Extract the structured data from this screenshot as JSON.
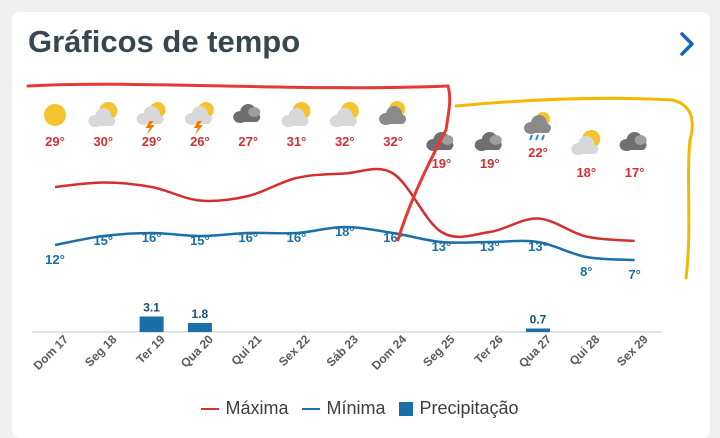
{
  "header": {
    "title": "Gráficos de tempo",
    "chevron_icon": "chevron-right-icon"
  },
  "colors": {
    "max": "#d32f2f",
    "min": "#1a6fa8",
    "precip": "#1a6fa8",
    "annotation_red": "#e53935",
    "annotation_yellow": "#f5b800"
  },
  "legend": {
    "max_label": "Máxima",
    "min_label": "Mínima",
    "precip_label": "Precipitação"
  },
  "days": [
    {
      "label": "Dom 17",
      "icon": "sun-icon",
      "max": "29°",
      "min": "12°"
    },
    {
      "label": "Seg 18",
      "icon": "partly-cloudy-icon",
      "max": "30°",
      "min": "15°"
    },
    {
      "label": "Ter 19",
      "icon": "thunderstorm-icon",
      "max": "29°",
      "min": "16°",
      "precip": "3.1"
    },
    {
      "label": "Qua 20",
      "icon": "thunderstorm-icon",
      "max": "26°",
      "min": "15°",
      "precip": "1.8"
    },
    {
      "label": "Qui 21",
      "icon": "cloudy-icon",
      "max": "27°",
      "min": "16°"
    },
    {
      "label": "Sex 22",
      "icon": "partly-cloudy-icon",
      "max": "31°",
      "min": "16°"
    },
    {
      "label": "Sáb 23",
      "icon": "partly-cloudy-icon",
      "max": "32°",
      "min": "18°"
    },
    {
      "label": "Dom 24",
      "icon": "cloudy-sun-icon",
      "max": "32°",
      "min": "16°"
    },
    {
      "label": "Seg 25",
      "icon": "cloudy-icon",
      "max": "19°",
      "min": "13°"
    },
    {
      "label": "Ter 26",
      "icon": "cloudy-icon",
      "max": "19°",
      "min": "13°"
    },
    {
      "label": "Qua 27",
      "icon": "rain-icon",
      "max": "22°",
      "min": "13°",
      "precip": "0.7"
    },
    {
      "label": "Qui 28",
      "icon": "partly-cloudy-icon",
      "max": "18°",
      "min": "8°"
    },
    {
      "label": "Sex 29",
      "icon": "cloudy-icon",
      "max": "17°",
      "min": "7°"
    }
  ],
  "chart_data": {
    "type": "line",
    "categories": [
      "Dom 17",
      "Seg 18",
      "Ter 19",
      "Qua 20",
      "Qui 21",
      "Sex 22",
      "Sáb 23",
      "Dom 24",
      "Seg 25",
      "Ter 26",
      "Qua 27",
      "Qui 28",
      "Sex 29"
    ],
    "series": [
      {
        "name": "Máxima",
        "values": [
          29,
          30,
          29,
          26,
          27,
          31,
          32,
          32,
          19,
          19,
          22,
          18,
          17
        ]
      },
      {
        "name": "Mínima",
        "values": [
          12,
          15,
          16,
          15,
          16,
          16,
          18,
          16,
          13,
          13,
          13,
          8,
          7
        ]
      },
      {
        "name": "Precipitação",
        "type": "bar",
        "values": [
          0,
          0,
          3.1,
          1.8,
          0,
          0,
          0,
          0,
          0,
          0,
          0.7,
          0,
          0
        ]
      }
    ],
    "legend_position": "bottom",
    "grid": false
  }
}
